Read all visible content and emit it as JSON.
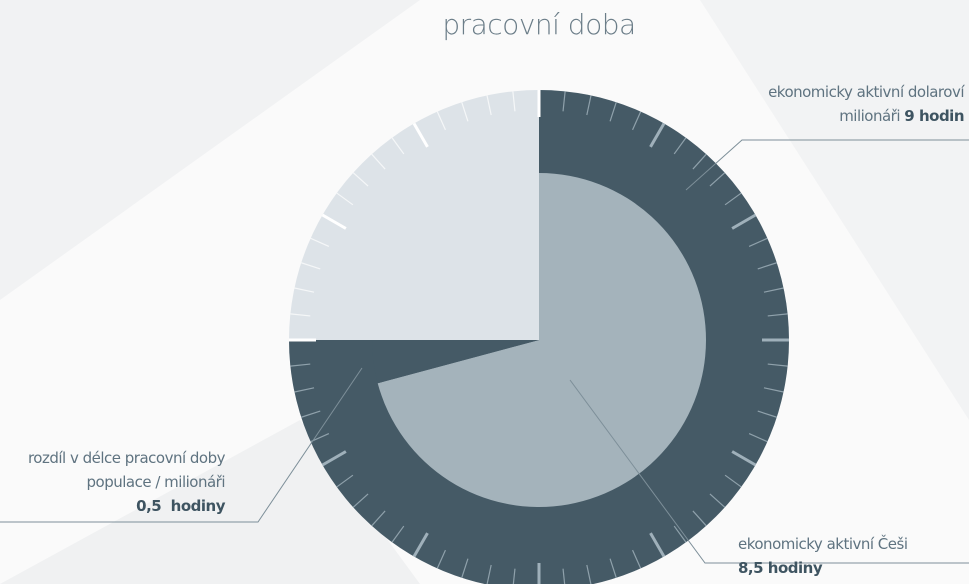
{
  "chart_data": {
    "type": "clock",
    "title": "pracovní doba",
    "ylim": [
      0,
      12
    ],
    "yticks": [
      0,
      1,
      2,
      3,
      4,
      5,
      6,
      7,
      8,
      9,
      10,
      11
    ],
    "background_color": "#dde3e8",
    "series": [
      {
        "name": "ekonomicky aktivní dolaroví milionáři",
        "values": [
          9
        ],
        "value_labels": [
          "9 hodin"
        ],
        "color": "#455a66"
      },
      {
        "name": "ekonomicky aktivní Češi",
        "values": [
          8.5
        ],
        "value_labels": [
          "8,5 hodiny"
        ],
        "color": "#a4b3bb"
      },
      {
        "name": "rozdíl v délce pracovní doby populace / milionáři",
        "values": [
          0.5
        ],
        "value_labels": [
          "0,5  hodiny"
        ],
        "color": "#455a66"
      }
    ]
  }
}
